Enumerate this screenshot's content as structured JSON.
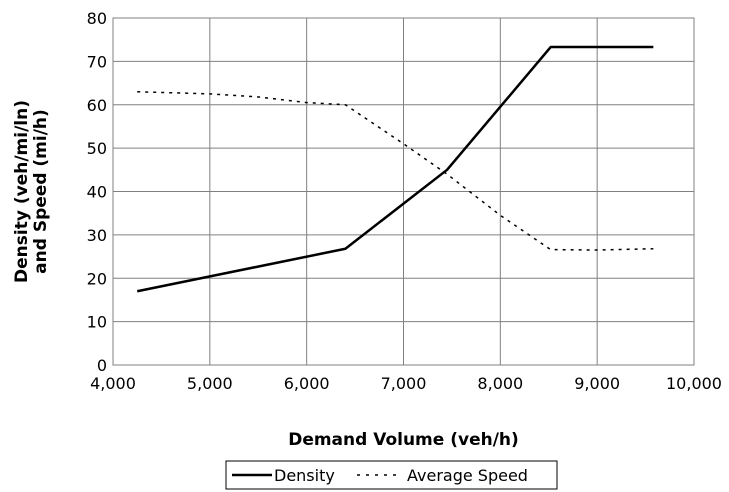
{
  "chart_data": {
    "type": "line",
    "title": "",
    "xlabel": "Demand Volume (veh/h)",
    "ylabel_line1": "Density (veh/mi/ln)",
    "ylabel_line2": "and Speed (mi/h)",
    "xlim": [
      4000,
      10000
    ],
    "ylim": [
      0,
      80
    ],
    "x_ticks": [
      4000,
      5000,
      6000,
      7000,
      8000,
      9000,
      10000
    ],
    "x_tick_labels": [
      "4,000",
      "5,000",
      "6,000",
      "7,000",
      "8,000",
      "9,000",
      "10,000"
    ],
    "y_ticks": [
      0,
      10,
      20,
      30,
      40,
      50,
      60,
      70,
      80
    ],
    "y_tick_labels": [
      "0",
      "10",
      "20",
      "30",
      "40",
      "50",
      "60",
      "70",
      "80"
    ],
    "grid": true,
    "legend_position": "bottom-center",
    "series": [
      {
        "name": "Density",
        "style": "solid",
        "color": "#000000",
        "x": [
          4250,
          6400,
          7450,
          8520,
          9580
        ],
        "y": [
          17,
          26.8,
          45,
          73.3,
          73.3
        ]
      },
      {
        "name": "Average Speed",
        "style": "dotted",
        "color": "#000000",
        "x": [
          4250,
          5000,
          5500,
          6000,
          6400,
          7000,
          7450,
          8000,
          8520,
          9000,
          9580
        ],
        "y": [
          63,
          62.5,
          61.8,
          60.5,
          60,
          51,
          44,
          34.5,
          26.6,
          26.5,
          26.8
        ]
      }
    ]
  }
}
